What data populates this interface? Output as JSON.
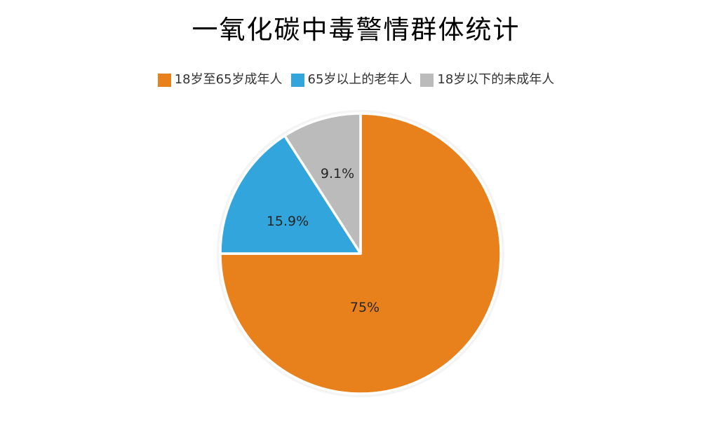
{
  "title": "一氧化碳中毒警情群体统计",
  "chart_data": {
    "type": "pie",
    "title": "一氧化碳中毒警情群体统计",
    "legend_position": "top",
    "start_angle_deg": 0,
    "direction": "clockwise",
    "unit": "percent",
    "series": [
      {
        "name": "18岁至65岁成年人",
        "value": 75,
        "label": "75%",
        "color": "#E8811C"
      },
      {
        "name": "65岁以上的老年人",
        "value": 15.9,
        "label": "15.9%",
        "color": "#32A5DC"
      },
      {
        "name": "18岁以下的未成年人",
        "value": 9.1,
        "label": "9.1%",
        "color": "#BBBBBB"
      }
    ],
    "colors": {
      "background": "#FFFFFF",
      "slice_separator": "#FFFFFF",
      "outer_ring": "#F4F4F4",
      "label_text": "#262626",
      "legend_text": "#333333",
      "title_text": "#000000"
    }
  }
}
